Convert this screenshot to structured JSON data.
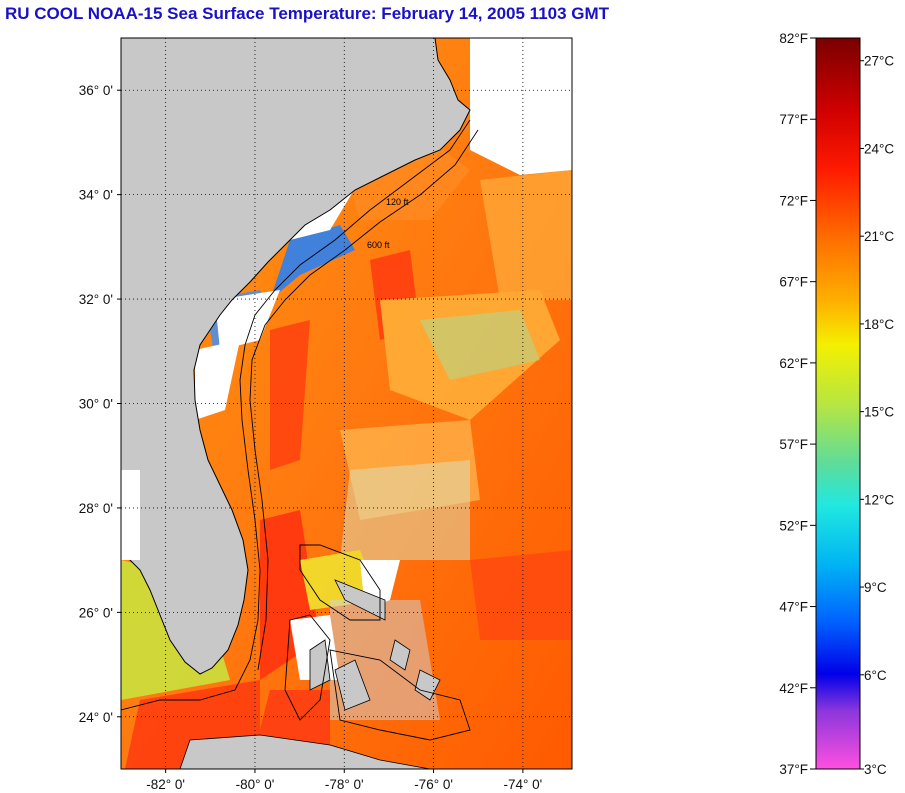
{
  "title": "RU COOL  NOAA-15  Sea Surface Temperature:  February 14, 2005 1103 GMT",
  "map": {
    "lon_range": [
      -83.0,
      -72.9
    ],
    "lat_range": [
      23.0,
      37.0
    ],
    "lat_ticks": [
      {
        "value": 36,
        "label": "36° 0'"
      },
      {
        "value": 34,
        "label": "34° 0'"
      },
      {
        "value": 32,
        "label": "32° 0'"
      },
      {
        "value": 30,
        "label": "30° 0'"
      },
      {
        "value": 28,
        "label": "28° 0'"
      },
      {
        "value": 26,
        "label": "26° 0'"
      },
      {
        "value": 24,
        "label": "24° 0'"
      }
    ],
    "lon_ticks": [
      {
        "value": -82,
        "label": "-82° 0'"
      },
      {
        "value": -80,
        "label": "-80° 0'"
      },
      {
        "value": -78,
        "label": "-78° 0'"
      },
      {
        "value": -76,
        "label": "-76° 0'"
      },
      {
        "value": -74,
        "label": "-74° 0'"
      }
    ],
    "grid": "dotted",
    "land_color": "#c8c8c8",
    "no_data_color": "#ffffff",
    "contour_labels": [
      "120 ft",
      "600 ft"
    ]
  },
  "colorbar": {
    "placement": "right",
    "fahrenheit_labels": [
      "82°F",
      "77°F",
      "72°F",
      "67°F",
      "62°F",
      "57°F",
      "52°F",
      "47°F",
      "42°F",
      "37°F"
    ],
    "celsius_labels": [
      "27°C",
      "24°C",
      "21°C",
      "18°C",
      "15°C",
      "12°C",
      "9°C",
      "6°C",
      "3°C"
    ],
    "colors": [
      "#7a0000",
      "#c00000",
      "#ff1a00",
      "#ff5a00",
      "#ff9a00",
      "#ffd000",
      "#f2f200",
      "#bce63c",
      "#6cdc8c",
      "#20e6d8",
      "#00bcf4",
      "#0070ff",
      "#1428ff",
      "#0000ee",
      "#7a30e0",
      "#ee50d0",
      "#ff50e0"
    ]
  }
}
